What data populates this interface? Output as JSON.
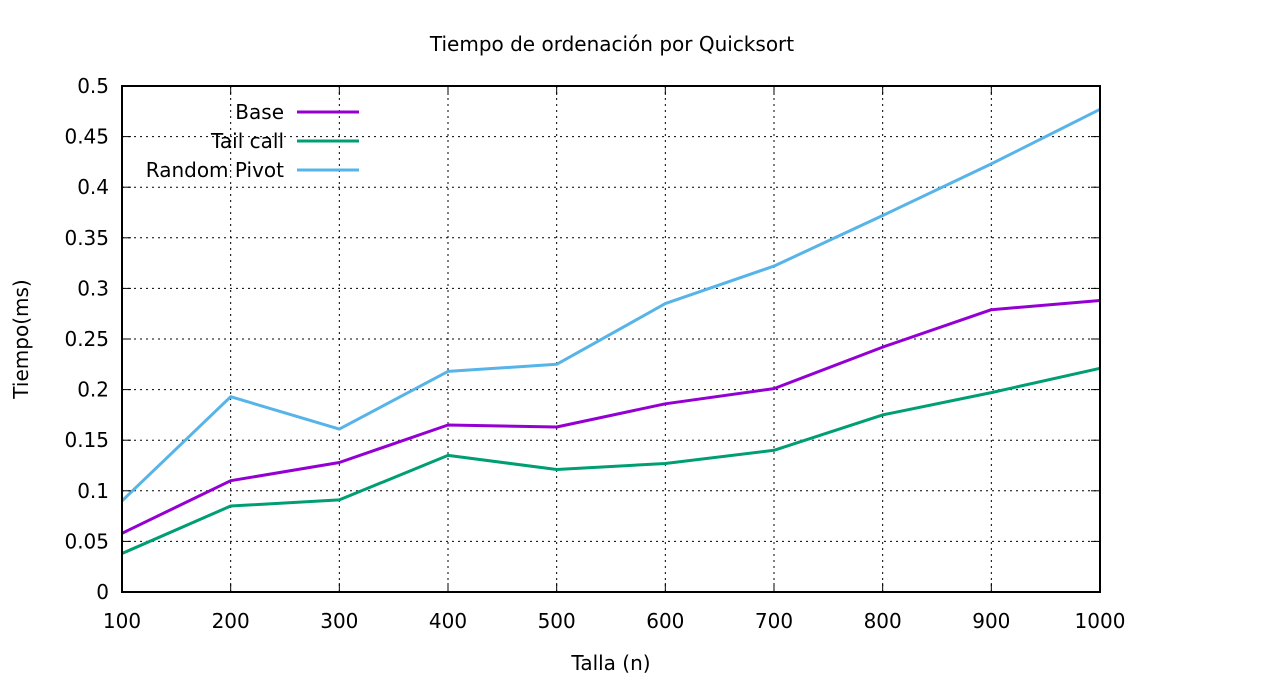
{
  "chart_data": {
    "type": "line",
    "title": "Tiempo de ordenación por Quicksort",
    "xlabel": "Talla (n)",
    "ylabel": "Tiempo(ms)",
    "x": [
      100,
      200,
      300,
      400,
      500,
      600,
      700,
      800,
      900,
      1000
    ],
    "xlim": [
      100,
      1000
    ],
    "ylim": [
      0,
      0.5
    ],
    "xticks": [
      "100",
      "200",
      "300",
      "400",
      "500",
      "600",
      "700",
      "800",
      "900",
      "1000"
    ],
    "yticks": [
      "0",
      "0.05",
      "0.1",
      "0.15",
      "0.2",
      "0.25",
      "0.3",
      "0.35",
      "0.4",
      "0.45",
      "0.5"
    ],
    "grid": true,
    "legend_position": "top-left",
    "series": [
      {
        "name": "Base",
        "color": "#9400d3",
        "values": [
          0.058,
          0.11,
          0.128,
          0.165,
          0.163,
          0.186,
          0.201,
          0.242,
          0.279,
          0.288
        ]
      },
      {
        "name": "Tail call",
        "color": "#009e73",
        "values": [
          0.038,
          0.085,
          0.091,
          0.135,
          0.121,
          0.127,
          0.14,
          0.175,
          0.197,
          0.221
        ]
      },
      {
        "name": "Random Pivot",
        "color": "#56b4e9",
        "values": [
          0.09,
          0.193,
          0.161,
          0.218,
          0.225,
          0.285,
          0.322,
          0.372,
          0.423,
          0.477
        ]
      }
    ]
  }
}
